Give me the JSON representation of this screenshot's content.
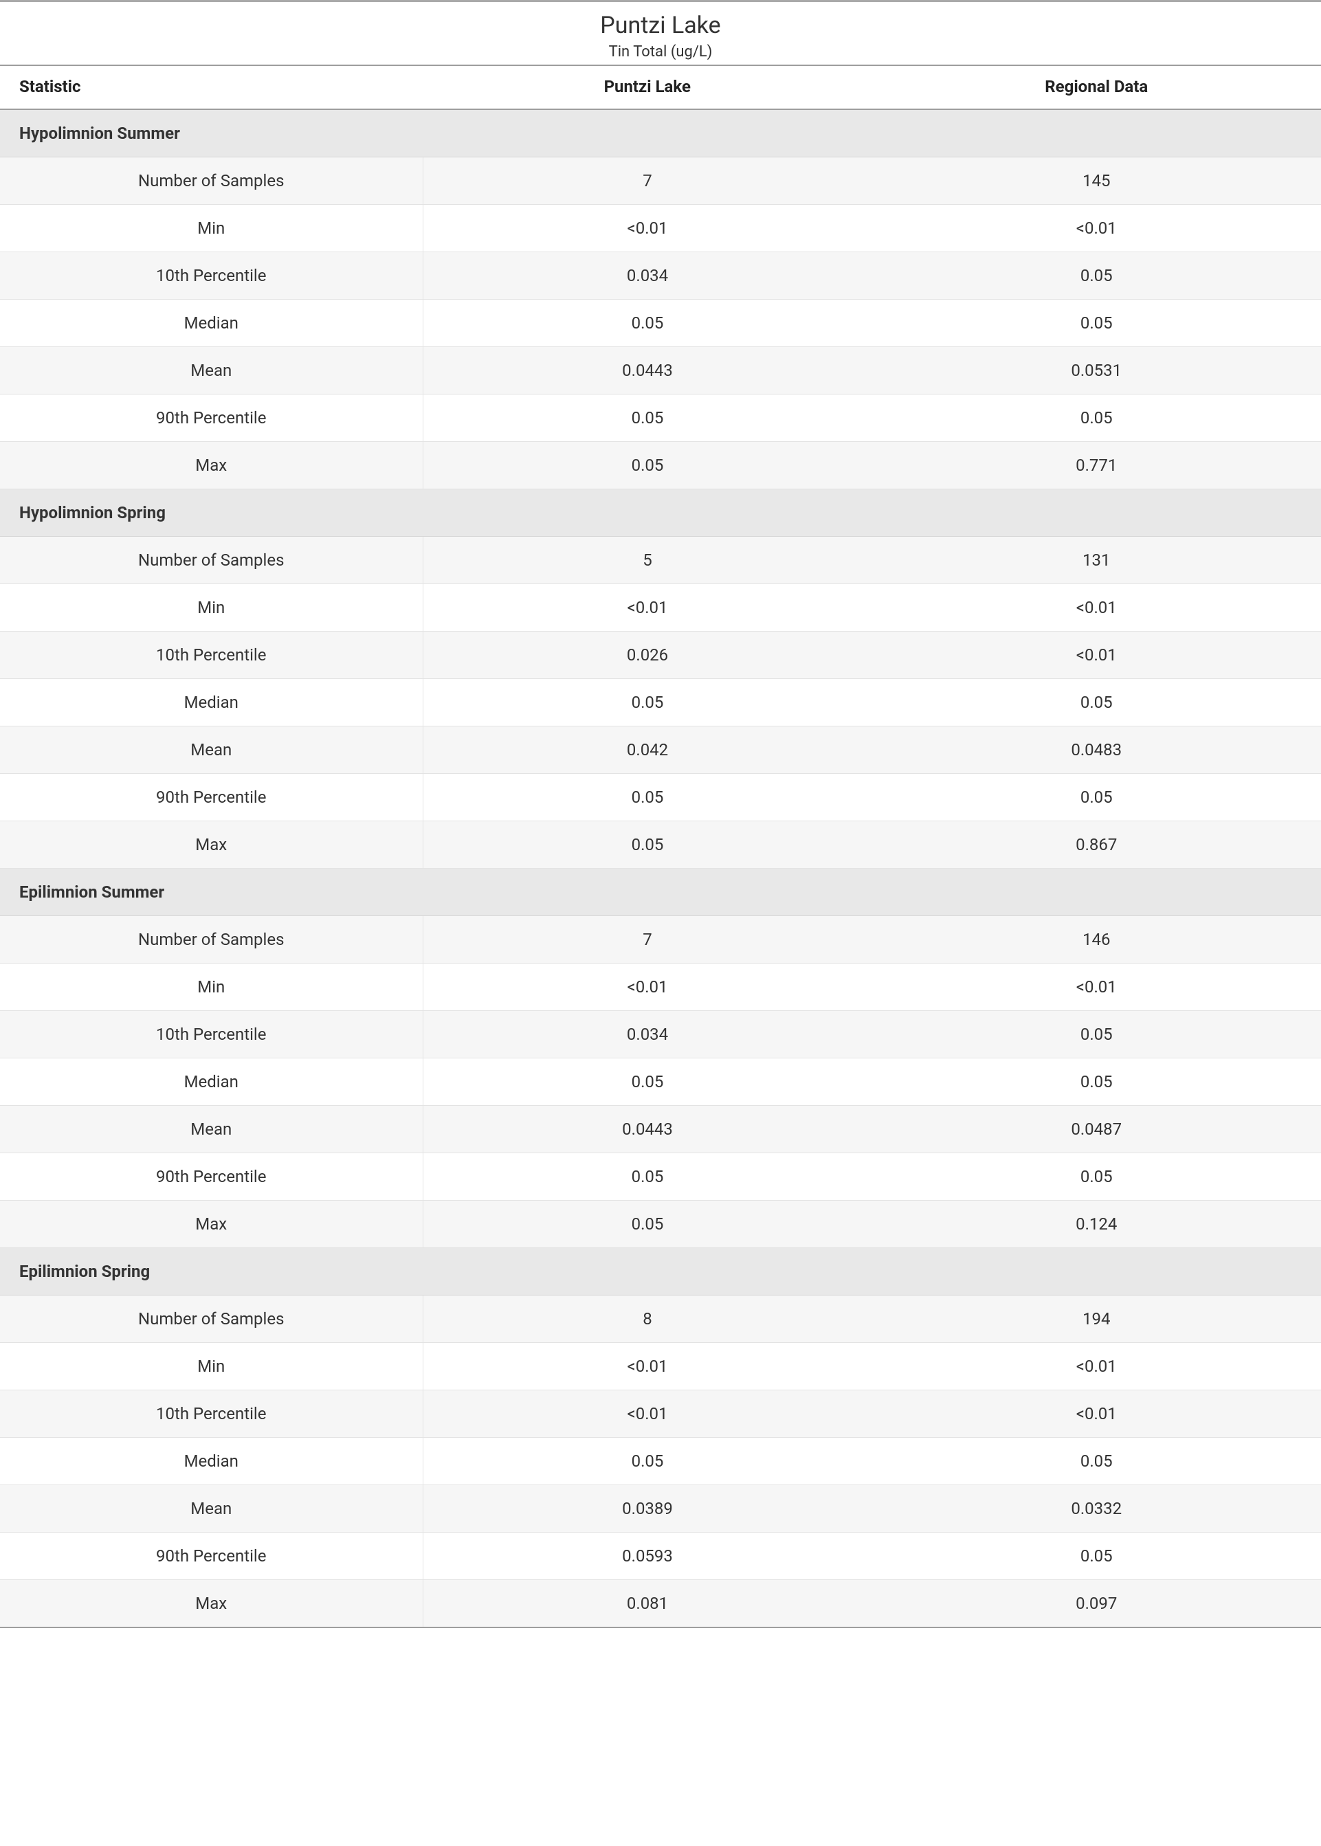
{
  "header": {
    "title": "Puntzi Lake",
    "subtitle": "Tin Total (ug/L)"
  },
  "columns": {
    "statistic": "Statistic",
    "site": "Puntzi Lake",
    "regional": "Regional Data"
  },
  "stat_labels": {
    "n": "Number of Samples",
    "min": "Min",
    "p10": "10th Percentile",
    "median": "Median",
    "mean": "Mean",
    "p90": "90th Percentile",
    "max": "Max"
  },
  "sections": [
    {
      "name": "Hypolimnion Summer",
      "rows": [
        {
          "stat": "n",
          "site": "7",
          "regional": "145"
        },
        {
          "stat": "min",
          "site": "<0.01",
          "regional": "<0.01"
        },
        {
          "stat": "p10",
          "site": "0.034",
          "regional": "0.05"
        },
        {
          "stat": "median",
          "site": "0.05",
          "regional": "0.05"
        },
        {
          "stat": "mean",
          "site": "0.0443",
          "regional": "0.0531"
        },
        {
          "stat": "p90",
          "site": "0.05",
          "regional": "0.05"
        },
        {
          "stat": "max",
          "site": "0.05",
          "regional": "0.771"
        }
      ]
    },
    {
      "name": "Hypolimnion Spring",
      "rows": [
        {
          "stat": "n",
          "site": "5",
          "regional": "131"
        },
        {
          "stat": "min",
          "site": "<0.01",
          "regional": "<0.01"
        },
        {
          "stat": "p10",
          "site": "0.026",
          "regional": "<0.01"
        },
        {
          "stat": "median",
          "site": "0.05",
          "regional": "0.05"
        },
        {
          "stat": "mean",
          "site": "0.042",
          "regional": "0.0483"
        },
        {
          "stat": "p90",
          "site": "0.05",
          "regional": "0.05"
        },
        {
          "stat": "max",
          "site": "0.05",
          "regional": "0.867"
        }
      ]
    },
    {
      "name": "Epilimnion Summer",
      "rows": [
        {
          "stat": "n",
          "site": "7",
          "regional": "146"
        },
        {
          "stat": "min",
          "site": "<0.01",
          "regional": "<0.01"
        },
        {
          "stat": "p10",
          "site": "0.034",
          "regional": "0.05"
        },
        {
          "stat": "median",
          "site": "0.05",
          "regional": "0.05"
        },
        {
          "stat": "mean",
          "site": "0.0443",
          "regional": "0.0487"
        },
        {
          "stat": "p90",
          "site": "0.05",
          "regional": "0.05"
        },
        {
          "stat": "max",
          "site": "0.05",
          "regional": "0.124"
        }
      ]
    },
    {
      "name": "Epilimnion Spring",
      "rows": [
        {
          "stat": "n",
          "site": "8",
          "regional": "194"
        },
        {
          "stat": "min",
          "site": "<0.01",
          "regional": "<0.01"
        },
        {
          "stat": "p10",
          "site": "<0.01",
          "regional": "<0.01"
        },
        {
          "stat": "median",
          "site": "0.05",
          "regional": "0.05"
        },
        {
          "stat": "mean",
          "site": "0.0389",
          "regional": "0.0332"
        },
        {
          "stat": "p90",
          "site": "0.0593",
          "regional": "0.05"
        },
        {
          "stat": "max",
          "site": "0.081",
          "regional": "0.097"
        }
      ]
    }
  ],
  "style": {
    "background_color": "#ffffff",
    "section_bg": "#e8e8e8",
    "alt_row_bg": "#f6f6f6",
    "border_color": "#e3e3e3",
    "header_border_color": "#9e9e9e",
    "text_color": "#333333",
    "title_fontsize": 34,
    "subtitle_fontsize": 22,
    "cell_fontsize": 24
  }
}
